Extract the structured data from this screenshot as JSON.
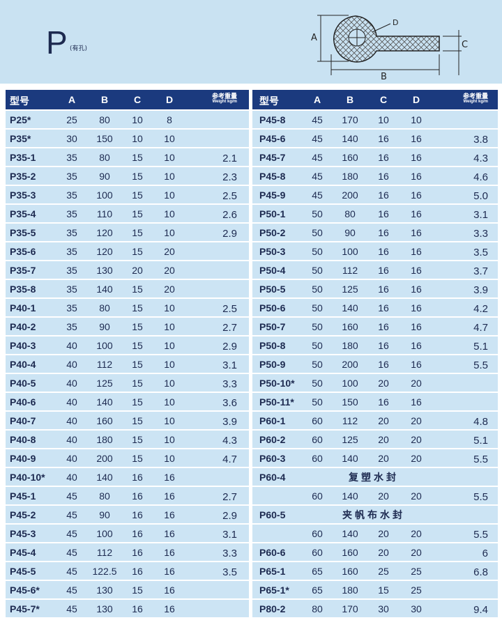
{
  "header": {
    "title": "P",
    "subtitle": "(有孔)",
    "diagram_labels": {
      "a": "A",
      "b": "B",
      "c": "C",
      "d": "D"
    }
  },
  "table": {
    "columns": [
      "型号",
      "A",
      "B",
      "C",
      "D"
    ],
    "weight_title": "参考重量",
    "weight_sub": "Weight kg/m",
    "left": [
      {
        "model": "P25*",
        "a": "25",
        "b": "80",
        "c": "10",
        "d": "8"
      },
      {
        "model": "P35*",
        "a": "30",
        "b": "150",
        "c": "10",
        "d": "10"
      },
      {
        "model": "P35-1",
        "a": "35",
        "b": "80",
        "c": "15",
        "d": "10",
        "w": "2.1"
      },
      {
        "model": "P35-2",
        "a": "35",
        "b": "90",
        "c": "15",
        "d": "10",
        "w": "2.3"
      },
      {
        "model": "P35-3",
        "a": "35",
        "b": "100",
        "c": "15",
        "d": "10",
        "w": "2.5"
      },
      {
        "model": "P35-4",
        "a": "35",
        "b": "110",
        "c": "15",
        "d": "10",
        "w": "2.6"
      },
      {
        "model": "P35-5",
        "a": "35",
        "b": "120",
        "c": "15",
        "d": "10",
        "w": "2.9"
      },
      {
        "model": "P35-6",
        "a": "35",
        "b": "120",
        "c": "15",
        "d": "20"
      },
      {
        "model": "P35-7",
        "a": "35",
        "b": "130",
        "c": "20",
        "d": "20"
      },
      {
        "model": "P35-8",
        "a": "35",
        "b": "140",
        "c": "15",
        "d": "20"
      },
      {
        "model": "P40-1",
        "a": "35",
        "b": "80",
        "c": "15",
        "d": "10",
        "w": "2.5"
      },
      {
        "model": "P40-2",
        "a": "35",
        "b": "90",
        "c": "15",
        "d": "10",
        "w": "2.7"
      },
      {
        "model": "P40-3",
        "a": "40",
        "b": "100",
        "c": "15",
        "d": "10",
        "w": "2.9"
      },
      {
        "model": "P40-4",
        "a": "40",
        "b": "112",
        "c": "15",
        "d": "10",
        "w": "3.1"
      },
      {
        "model": "P40-5",
        "a": "40",
        "b": "125",
        "c": "15",
        "d": "10",
        "w": "3.3"
      },
      {
        "model": "P40-6",
        "a": "40",
        "b": "140",
        "c": "15",
        "d": "10",
        "w": "3.6"
      },
      {
        "model": "P40-7",
        "a": "40",
        "b": "160",
        "c": "15",
        "d": "10",
        "w": "3.9"
      },
      {
        "model": "P40-8",
        "a": "40",
        "b": "180",
        "c": "15",
        "d": "10",
        "w": "4.3"
      },
      {
        "model": "P40-9",
        "a": "40",
        "b": "200",
        "c": "15",
        "d": "10",
        "w": "4.7"
      },
      {
        "model": "P40-10*",
        "a": "40",
        "b": "140",
        "c": "16",
        "d": "16"
      },
      {
        "model": "P45-1",
        "a": "45",
        "b": "80",
        "c": "16",
        "d": "16",
        "w": "2.7"
      },
      {
        "model": "P45-2",
        "a": "45",
        "b": "90",
        "c": "16",
        "d": "16",
        "w": "2.9"
      },
      {
        "model": "P45-3",
        "a": "45",
        "b": "100",
        "c": "16",
        "d": "16",
        "w": "3.1"
      },
      {
        "model": "P45-4",
        "a": "45",
        "b": "112",
        "c": "16",
        "d": "16",
        "w": "3.3"
      },
      {
        "model": "P45-5",
        "a": "45",
        "b": "122.5",
        "c": "16",
        "d": "16",
        "w": "3.5"
      },
      {
        "model": "P45-6*",
        "a": "45",
        "b": "130",
        "c": "15",
        "d": "16"
      },
      {
        "model": "P45-7*",
        "a": "45",
        "b": "130",
        "c": "16",
        "d": "16"
      }
    ],
    "right": [
      {
        "model": "P45-8",
        "a": "45",
        "b": "170",
        "c": "10",
        "d": "10"
      },
      {
        "model": "P45-6",
        "a": "45",
        "b": "140",
        "c": "16",
        "d": "16",
        "w": "3.8"
      },
      {
        "model": "P45-7",
        "a": "45",
        "b": "160",
        "c": "16",
        "d": "16",
        "w": "4.3"
      },
      {
        "model": "P45-8",
        "a": "45",
        "b": "180",
        "c": "16",
        "d": "16",
        "w": "4.6"
      },
      {
        "model": "P45-9",
        "a": "45",
        "b": "200",
        "c": "16",
        "d": "16",
        "w": "5.0"
      },
      {
        "model": "P50-1",
        "a": "50",
        "b": "80",
        "c": "16",
        "d": "16",
        "w": "3.1"
      },
      {
        "model": "P50-2",
        "a": "50",
        "b": "90",
        "c": "16",
        "d": "16",
        "w": "3.3"
      },
      {
        "model": "P50-3",
        "a": "50",
        "b": "100",
        "c": "16",
        "d": "16",
        "w": "3.5"
      },
      {
        "model": "P50-4",
        "a": "50",
        "b": "112",
        "c": "16",
        "d": "16",
        "w": "3.7"
      },
      {
        "model": "P50-5",
        "a": "50",
        "b": "125",
        "c": "16",
        "d": "16",
        "w": "3.9"
      },
      {
        "model": "P50-6",
        "a": "50",
        "b": "140",
        "c": "16",
        "d": "16",
        "w": "4.2"
      },
      {
        "model": "P50-7",
        "a": "50",
        "b": "160",
        "c": "16",
        "d": "16",
        "w": "4.7"
      },
      {
        "model": "P50-8",
        "a": "50",
        "b": "180",
        "c": "16",
        "d": "16",
        "w": "5.1"
      },
      {
        "model": "P50-9",
        "a": "50",
        "b": "200",
        "c": "16",
        "d": "16",
        "w": "5.5"
      },
      {
        "model": "P50-10*",
        "a": "50",
        "b": "100",
        "c": "20",
        "d": "20"
      },
      {
        "model": "P50-11*",
        "a": "50",
        "b": "150",
        "c": "16",
        "d": "16"
      },
      {
        "model": "P60-1",
        "a": "60",
        "b": "112",
        "c": "20",
        "d": "20",
        "w": "4.8"
      },
      {
        "model": "P60-2",
        "a": "60",
        "b": "125",
        "c": "20",
        "d": "20",
        "w": "5.1"
      },
      {
        "model": "P60-3",
        "a": "60",
        "b": "140",
        "c": "20",
        "d": "20",
        "w": "5.5"
      },
      {
        "model": "P60-4",
        "note": "复塑水封"
      },
      {
        "a": "60",
        "b": "140",
        "c": "20",
        "d": "20",
        "w": "5.5"
      },
      {
        "model": "P60-5",
        "note": "夹帆布水封"
      },
      {
        "a": "60",
        "b": "140",
        "c": "20",
        "d": "20",
        "w": "5.5"
      },
      {
        "model": "P60-6",
        "a": "60",
        "b": "160",
        "c": "20",
        "d": "20",
        "w": "6"
      },
      {
        "model": "P65-1",
        "a": "65",
        "b": "160",
        "c": "25",
        "d": "25",
        "w": "6.8"
      },
      {
        "model": "P65-1*",
        "a": "65",
        "b": "180",
        "c": "15",
        "d": "25"
      },
      {
        "model": "P80-2",
        "a": "80",
        "b": "170",
        "c": "30",
        "d": "30",
        "w": "9.4"
      }
    ]
  }
}
